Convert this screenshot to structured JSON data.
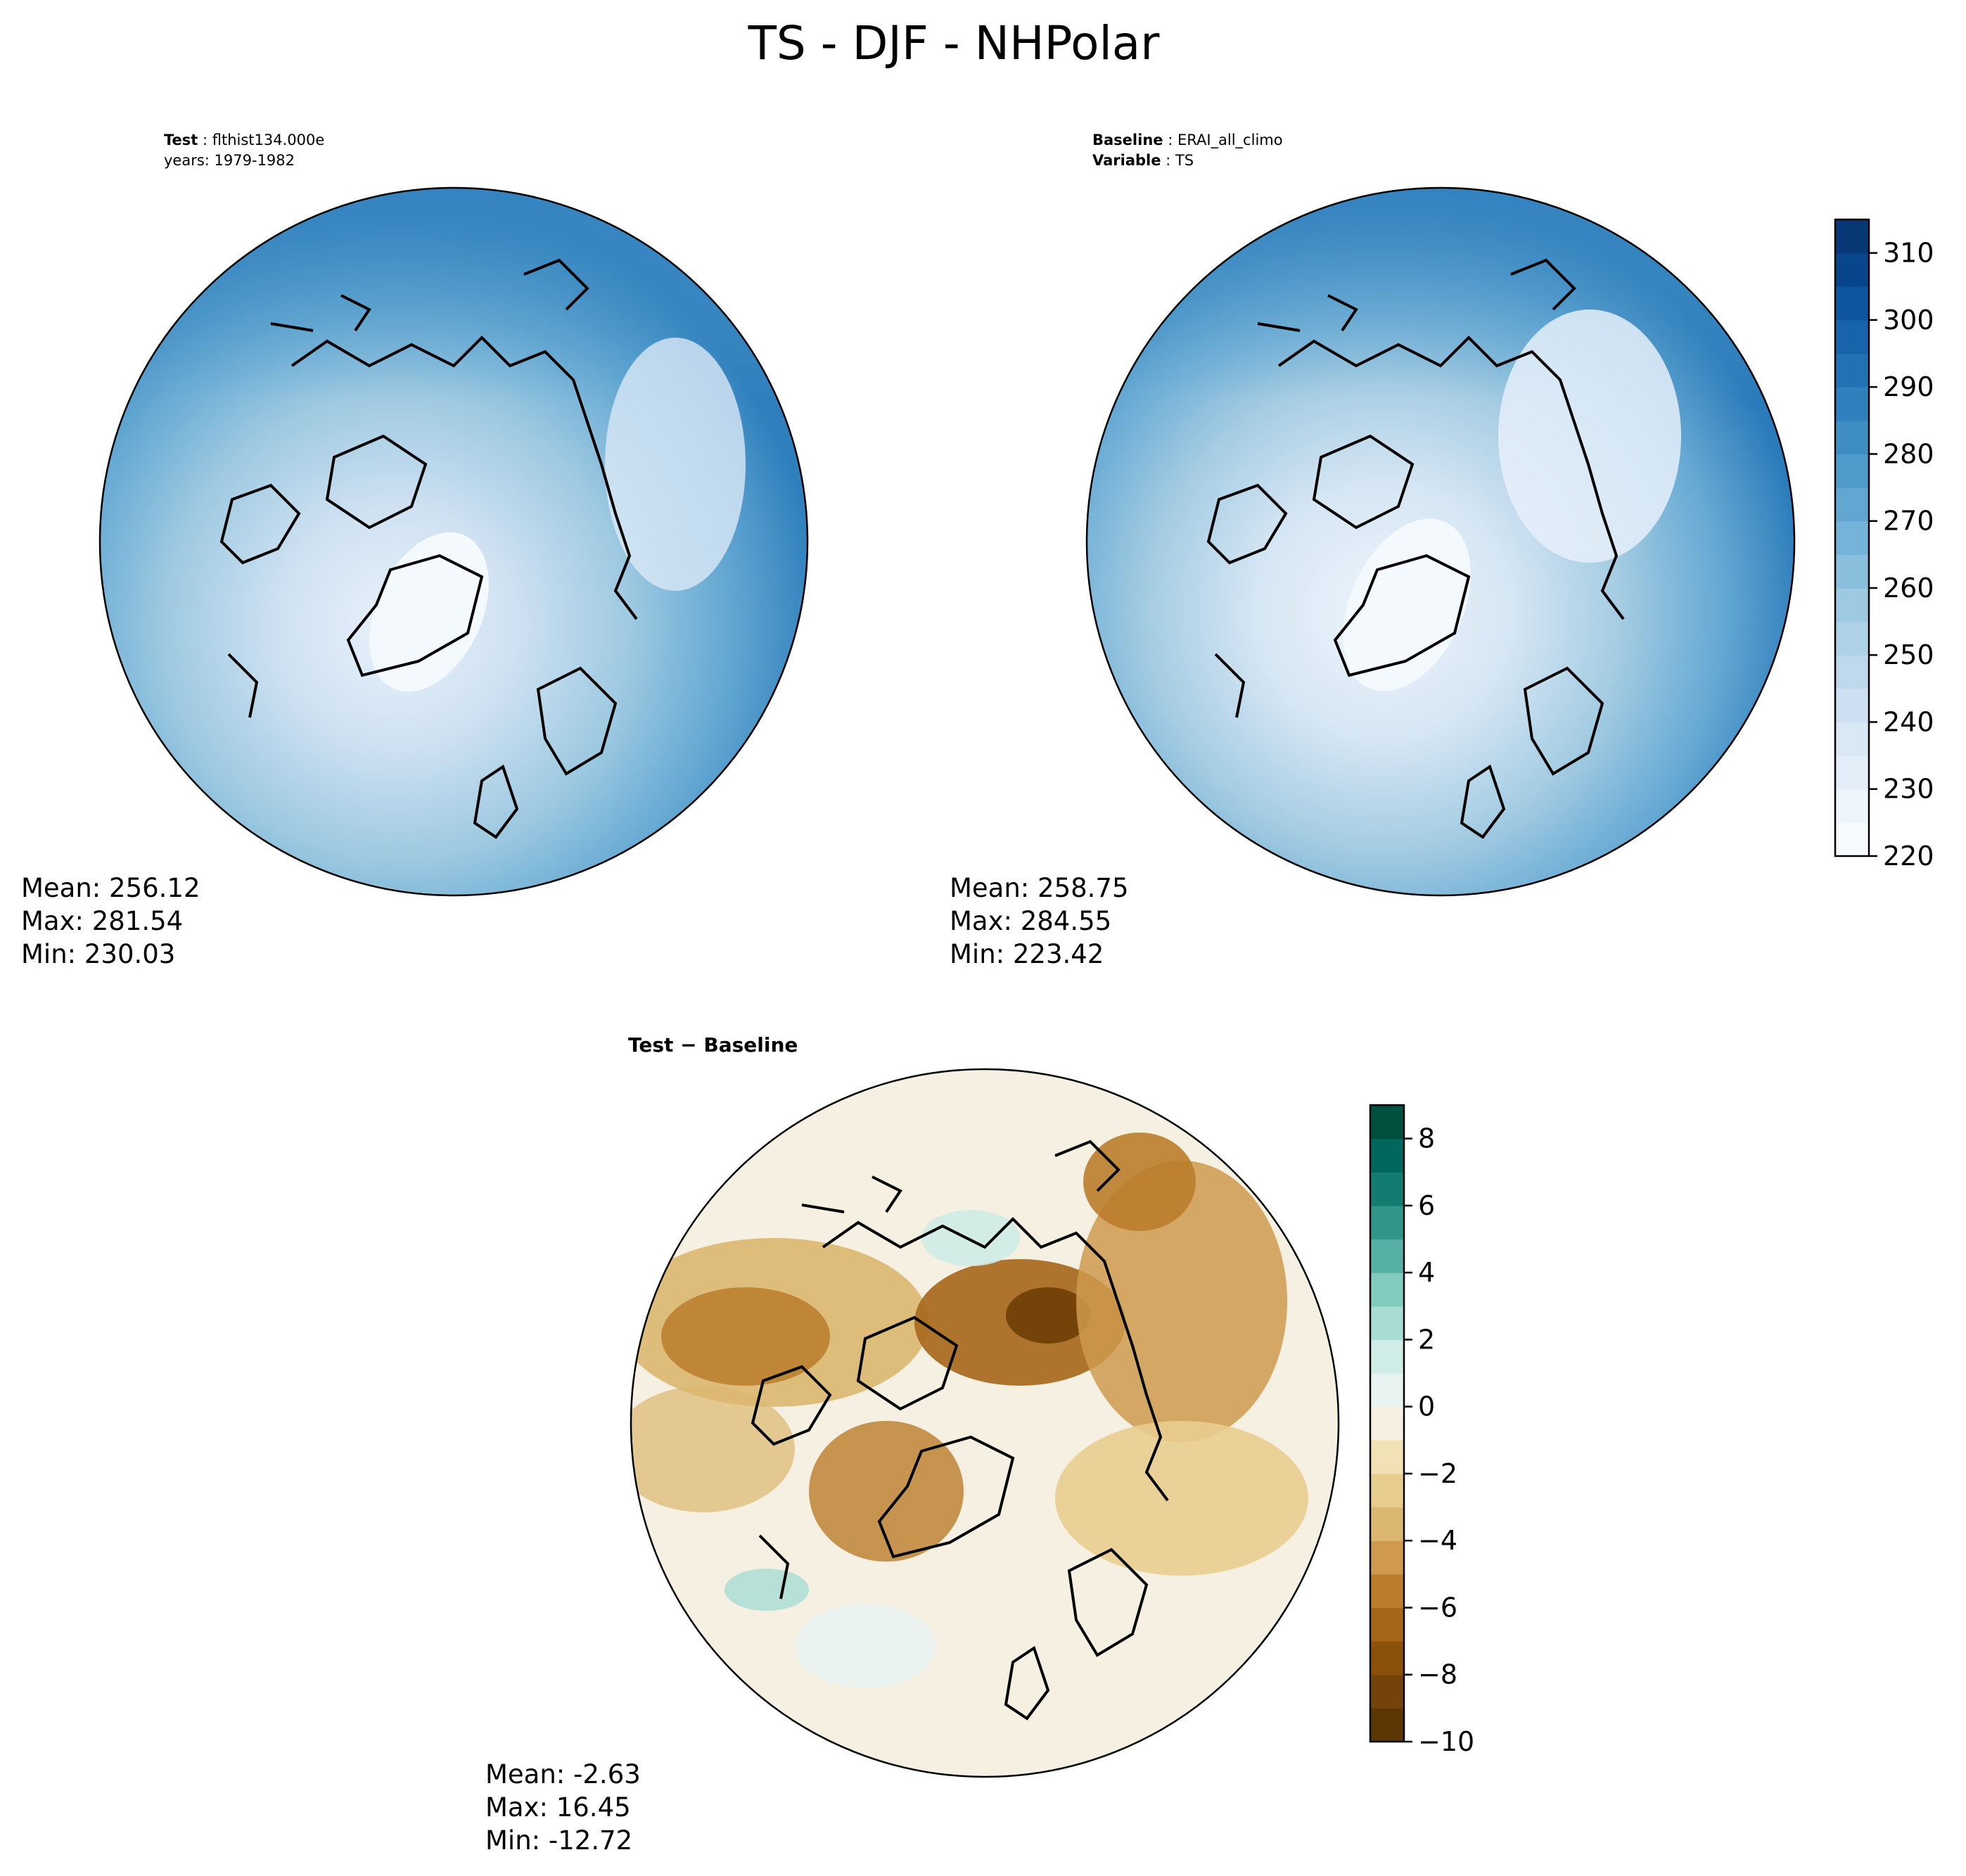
{
  "title": "TS - DJF - NHPolar",
  "panels": {
    "test": {
      "label_key": "Test",
      "label_value": "flthist134.000e",
      "years": "years: 1979-1982",
      "stats": {
        "mean": "Mean: 256.12",
        "max": "Max: 281.54",
        "min": "Min: 230.03"
      }
    },
    "baseline": {
      "label_key": "Baseline",
      "label_value": "ERAI_all_climo",
      "variable_key": "Variable",
      "variable_value": "TS",
      "stats": {
        "mean": "Mean: 258.75",
        "max": "Max: 284.55",
        "min": "Min: 223.42"
      }
    },
    "diff": {
      "label": "Test − Baseline",
      "stats": {
        "mean": "Mean: -2.63",
        "max": "Max: 16.45",
        "min": "Min: -12.72"
      }
    }
  },
  "chart_data": [
    {
      "type": "heatmap",
      "projection": "north-polar-stereographic",
      "name": "Test",
      "colormap": "Blues",
      "colorbar": {
        "min": 220,
        "max": 315,
        "step": 5,
        "ticks": [
          220,
          230,
          240,
          250,
          260,
          270,
          280,
          290,
          300,
          310
        ],
        "tick_labels": [
          "220",
          "230",
          "240",
          "250",
          "260",
          "270",
          "280",
          "290",
          "300",
          "310"
        ]
      },
      "mean": 256.12,
      "max": 281.54,
      "min": 230.03
    },
    {
      "type": "heatmap",
      "projection": "north-polar-stereographic",
      "name": "Baseline",
      "colormap": "Blues",
      "colorbar": {
        "min": 220,
        "max": 315,
        "step": 5,
        "ticks": [
          220,
          230,
          240,
          250,
          260,
          270,
          280,
          290,
          300,
          310
        ],
        "tick_labels": [
          "220",
          "230",
          "240",
          "250",
          "260",
          "270",
          "280",
          "290",
          "300",
          "310"
        ]
      },
      "mean": 258.75,
      "max": 284.55,
      "min": 223.42
    },
    {
      "type": "heatmap",
      "projection": "north-polar-stereographic",
      "name": "Test − Baseline",
      "colormap": "BrBG",
      "colorbar": {
        "min": -10,
        "max": 9,
        "step": 1,
        "ticks": [
          -10,
          -8,
          -6,
          -4,
          -2,
          0,
          2,
          4,
          6,
          8
        ],
        "tick_labels": [
          "−10",
          "−8",
          "−6",
          "−4",
          "−2",
          "0",
          "2",
          "4",
          "6",
          "8"
        ]
      },
      "mean": -2.63,
      "max": 16.45,
      "min": -12.72
    }
  ],
  "colors": {
    "blues": [
      "#f7fbff",
      "#eef5fc",
      "#e3eef9",
      "#d9e8f5",
      "#cde0f1",
      "#bed8ec",
      "#afd1e7",
      "#9dc9e1",
      "#89bedc",
      "#75b4d8",
      "#61a7d2",
      "#4f9bcb",
      "#3e8ec4",
      "#3080bd",
      "#2271b5",
      "#1764ab",
      "#0d559f",
      "#08468b",
      "#083776"
    ],
    "brbg": [
      "#5c3705",
      "#744309",
      "#8b510b",
      "#a6661a",
      "#bb7d2b",
      "#cf9a4d",
      "#dcb770",
      "#e8cd8f",
      "#f1e1b5",
      "#f5f0e1",
      "#e9f3f1",
      "#cfece7",
      "#a8ddd3",
      "#80cbbd",
      "#57b0a4",
      "#329589",
      "#137c71",
      "#01665e",
      "#00503f"
    ]
  }
}
